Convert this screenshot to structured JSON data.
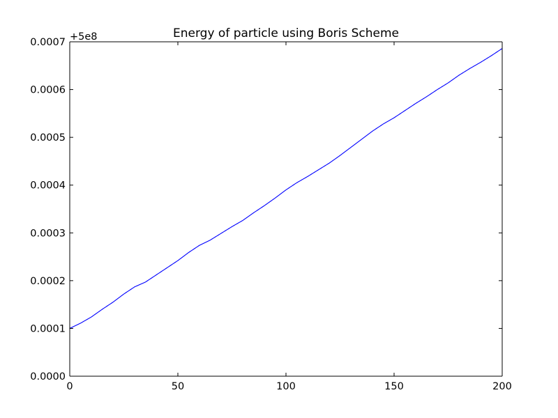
{
  "chart_data": {
    "type": "line",
    "title": "Energy of particle using Boris Scheme",
    "xlabel": "",
    "ylabel": "",
    "xlim": [
      0,
      200
    ],
    "ylim": [
      0.0,
      0.0007
    ],
    "y_offset_label": "+5e8",
    "x_ticks": [
      0,
      50,
      100,
      150,
      200
    ],
    "x_tick_labels": [
      "0",
      "50",
      "100",
      "150",
      "200"
    ],
    "y_ticks": [
      0.0,
      0.0001,
      0.0002,
      0.0003,
      0.0004,
      0.0005,
      0.0006,
      0.0007
    ],
    "y_tick_labels": [
      "0.0000",
      "0.0001",
      "0.0002",
      "0.0003",
      "0.0004",
      "0.0005",
      "0.0006",
      "0.0007"
    ],
    "grid": false,
    "legend": "none",
    "series": [
      {
        "color": "#0000ff",
        "x": [
          0,
          5,
          10,
          15,
          20,
          25,
          30,
          35,
          40,
          45,
          50,
          55,
          60,
          65,
          70,
          75,
          80,
          85,
          90,
          95,
          100,
          105,
          110,
          115,
          120,
          125,
          130,
          135,
          140,
          145,
          150,
          155,
          160,
          165,
          170,
          175,
          180,
          185,
          190,
          195,
          200
        ],
        "values": [
          0.0001,
          0.000111,
          0.000124,
          0.00014,
          0.000155,
          0.000172,
          0.000187,
          0.000197,
          0.000212,
          0.000227,
          0.000242,
          0.000259,
          0.000274,
          0.000285,
          0.000299,
          0.000313,
          0.000326,
          0.000342,
          0.000357,
          0.000373,
          0.00039,
          0.000405,
          0.000418,
          0.000432,
          0.000446,
          0.000462,
          0.000479,
          0.000496,
          0.000513,
          0.000528,
          0.000541,
          0.000556,
          0.000571,
          0.000585,
          0.0006,
          0.000614,
          0.00063,
          0.000644,
          0.000657,
          0.000671,
          0.000686
        ]
      }
    ]
  }
}
